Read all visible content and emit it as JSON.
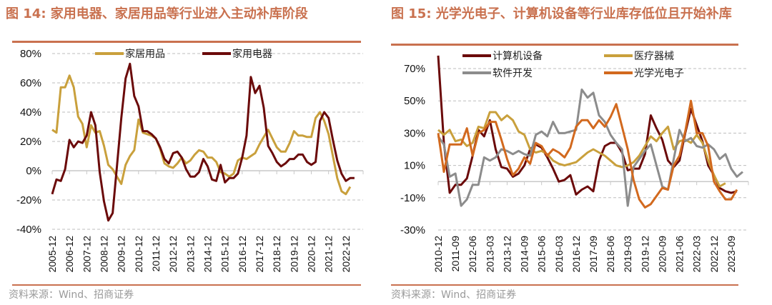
{
  "charts": [
    {
      "id": "left",
      "title": "图 14:  家用电器、家居用品等行业进入主动补库阶段",
      "source": "资料来源：Wind、招商证券",
      "accent_color": "#c9714f"
    },
    {
      "id": "right",
      "title": "图 15:  光学光电子、计算机设备等行业库存低位且开始补库",
      "source": "资料来源：Wind、招商证券",
      "accent_color": "#c9714f"
    }
  ],
  "chart_data": [
    {
      "type": "line",
      "title": "图 14:  家用电器、家居用品等行业进入主动补库阶段",
      "xlabel": "",
      "ylabel": "",
      "ylim": [
        -40,
        80
      ],
      "yticks": [
        80,
        60,
        40,
        20,
        0,
        -20,
        -40
      ],
      "ytick_labels": [
        "80%",
        "60%",
        "40%",
        "20%",
        "0%",
        "-20%",
        "-40%"
      ],
      "grid": true,
      "legend": "top",
      "x_tick_labels": [
        "2005-12",
        "2006-12",
        "2007-12",
        "2008-12",
        "2009-12",
        "2010-12",
        "2011-12",
        "2012-12",
        "2013-12",
        "2014-12",
        "2015-12",
        "2016-12",
        "2017-12",
        "2018-12",
        "2019-12",
        "2020-12",
        "2021-12",
        "2022-12"
      ],
      "points_per_year": 4,
      "series": [
        {
          "name": "家居用品",
          "color": "#c9a03c",
          "values": [
            28,
            26,
            57,
            57,
            65,
            57,
            37,
            32,
            16,
            31,
            26,
            27,
            17,
            4,
            1,
            -4,
            -9,
            4,
            10,
            14,
            35,
            26,
            25,
            24,
            22,
            15,
            5,
            3,
            2,
            5,
            9,
            5,
            7,
            11,
            14,
            13,
            9,
            9,
            6,
            -1,
            -2,
            -4,
            -2,
            7,
            9,
            8,
            10,
            12,
            18,
            23,
            28,
            22,
            16,
            13,
            13,
            19,
            27,
            24,
            24,
            23,
            23,
            36,
            40,
            34,
            25,
            10,
            -5,
            -14,
            -16,
            -11
          ]
        },
        {
          "name": "家用电器",
          "color": "#6b0a0a",
          "values": [
            -16,
            -6,
            -7,
            1,
            21,
            16,
            20,
            19,
            24,
            40,
            31,
            -1,
            -21,
            -34,
            -29,
            3,
            36,
            63,
            73,
            51,
            44,
            27,
            27,
            25,
            22,
            16,
            8,
            5,
            12,
            13,
            9,
            1,
            -4,
            -4,
            -1,
            8,
            3,
            -6,
            -7,
            4,
            -8,
            -5,
            -5,
            -2,
            9,
            24,
            64,
            53,
            58,
            43,
            17,
            12,
            6,
            3,
            5,
            8,
            8,
            11,
            11,
            6,
            4,
            6,
            34,
            40,
            36,
            21,
            7,
            -2,
            -7,
            -5,
            -5
          ]
        }
      ]
    },
    {
      "type": "line",
      "title": "图 15:  光学光电子、计算机设备等行业库存低位且开始补库",
      "xlabel": "",
      "ylabel": "",
      "ylim": [
        -30,
        70
      ],
      "yticks": [
        70,
        50,
        30,
        10,
        -10,
        -30
      ],
      "ytick_labels": [
        "70%",
        "50%",
        "30%",
        "10%",
        "-10%",
        "-30%"
      ],
      "grid": true,
      "legend": "top",
      "x_tick_labels": [
        "2010-12",
        "2011-09",
        "2012-06",
        "2013-03",
        "2013-12",
        "2014-09",
        "2015-06",
        "2016-03",
        "2016-12",
        "2017-09",
        "2018-06",
        "2019-03",
        "2019-12",
        "2020-09",
        "2021-06",
        "2022-03",
        "2022-12",
        "2023-09"
      ],
      "points_per_tick": 3,
      "series": [
        {
          "name": "计算机设备",
          "color": "#6b0a0a",
          "values": [
            78,
            24,
            -7,
            -2,
            -2,
            2,
            16,
            32,
            28,
            38,
            20,
            9,
            8,
            3,
            5,
            10,
            20,
            23,
            21,
            15,
            8,
            0,
            1,
            4,
            -8,
            -5,
            -3,
            -6,
            13,
            22,
            24,
            24,
            18,
            7,
            8,
            8,
            17,
            41,
            33,
            26,
            13,
            9,
            13,
            30,
            45,
            35,
            25,
            10,
            4,
            -4,
            -6,
            -7,
            -6
          ]
        },
        {
          "name": "医疗器械",
          "color": "#c9a03c",
          "values": [
            32,
            29,
            32,
            25,
            26,
            22,
            24,
            34,
            33,
            43,
            43,
            38,
            41,
            38,
            31,
            29,
            20,
            18,
            19,
            17,
            13,
            11,
            10,
            11,
            12,
            15,
            18,
            20,
            18,
            16,
            13,
            10,
            9,
            10,
            12,
            16,
            22,
            28,
            25,
            30,
            34,
            20,
            25,
            26,
            24,
            29,
            24,
            13,
            4,
            -3,
            -1
          ]
        },
        {
          "name": "软件开发",
          "color": "#8c8c8c",
          "values": [
            28,
            23,
            3,
            5,
            -15,
            -11,
            -2,
            -2,
            15,
            13,
            15,
            20,
            19,
            17,
            19,
            17,
            16,
            29,
            31,
            28,
            37,
            30,
            30,
            31,
            32,
            57,
            52,
            55,
            41,
            37,
            29,
            24,
            20,
            -15,
            9,
            14,
            19,
            23,
            10,
            -3,
            -5,
            14,
            32,
            25,
            27,
            22,
            21,
            23,
            20,
            14,
            17,
            8,
            3,
            6
          ]
        },
        {
          "name": "光学光电子",
          "color": "#d2691e",
          "values": [
            30,
            6,
            23,
            23,
            23,
            33,
            16,
            30,
            32,
            37,
            37,
            26,
            14,
            4,
            8,
            15,
            11,
            24,
            22,
            16,
            20,
            18,
            15,
            21,
            34,
            38,
            38,
            33,
            38,
            34,
            40,
            48,
            34,
            20,
            1,
            -11,
            -16,
            -14,
            -9,
            -4,
            -5,
            10,
            16,
            31,
            50,
            30,
            30,
            22,
            0,
            -6,
            -11,
            -11,
            -5
          ]
        }
      ]
    }
  ]
}
